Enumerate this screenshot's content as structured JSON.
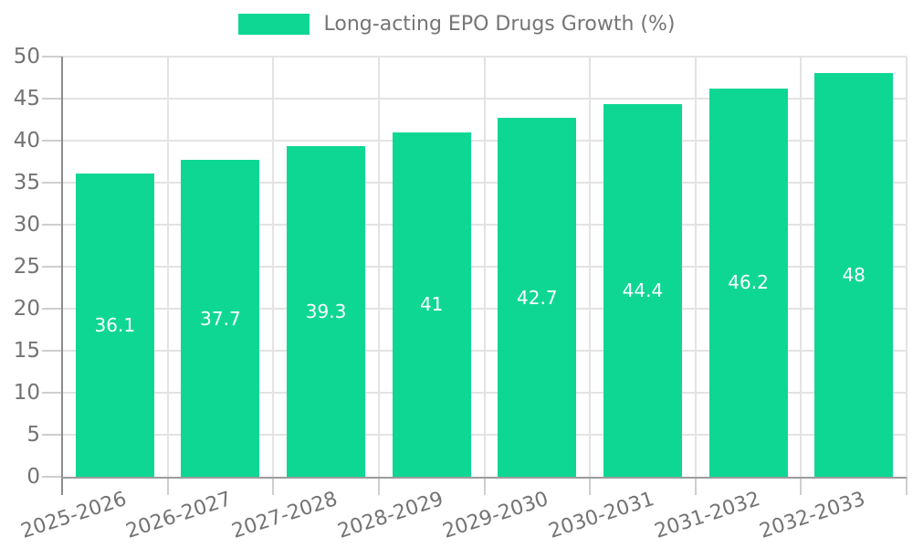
{
  "legend": {
    "label": "Long-acting EPO Drugs Growth (%)"
  },
  "colors": {
    "bar": "#0ed794",
    "grid": "#e3e3e3",
    "axis_y": "#8c8c8c",
    "axis_x": "#9c9c9c",
    "tick": "#cfcfcf",
    "axis_text": "#737373",
    "legend_text": "#757575",
    "value_label": "#ffffff",
    "background": "#ffffff"
  },
  "chart_data": {
    "type": "bar",
    "title": "",
    "series_label": "Long-acting EPO Drugs Growth (%)",
    "categories": [
      "2025-2026",
      "2026-2027",
      "2027-2028",
      "2028-2029",
      "2029-2030",
      "2030-2031",
      "2031-2032",
      "2032-2033"
    ],
    "values": [
      36.1,
      37.7,
      39.3,
      41,
      42.7,
      44.4,
      46.2,
      48
    ],
    "value_labels": [
      "36.1",
      "37.7",
      "39.3",
      "41",
      "42.7",
      "44.4",
      "46.2",
      "48"
    ],
    "xlabel": "",
    "ylabel": "",
    "ylim": [
      0,
      50
    ],
    "ytick_step": 5,
    "ytick_labels": [
      "0",
      "5",
      "10",
      "15",
      "20",
      "25",
      "30",
      "35",
      "40",
      "45",
      "50"
    ],
    "grid": true,
    "legend_position": "top-center",
    "value_label_position": "inside-center",
    "x_tick_rotation_deg": -18
  }
}
